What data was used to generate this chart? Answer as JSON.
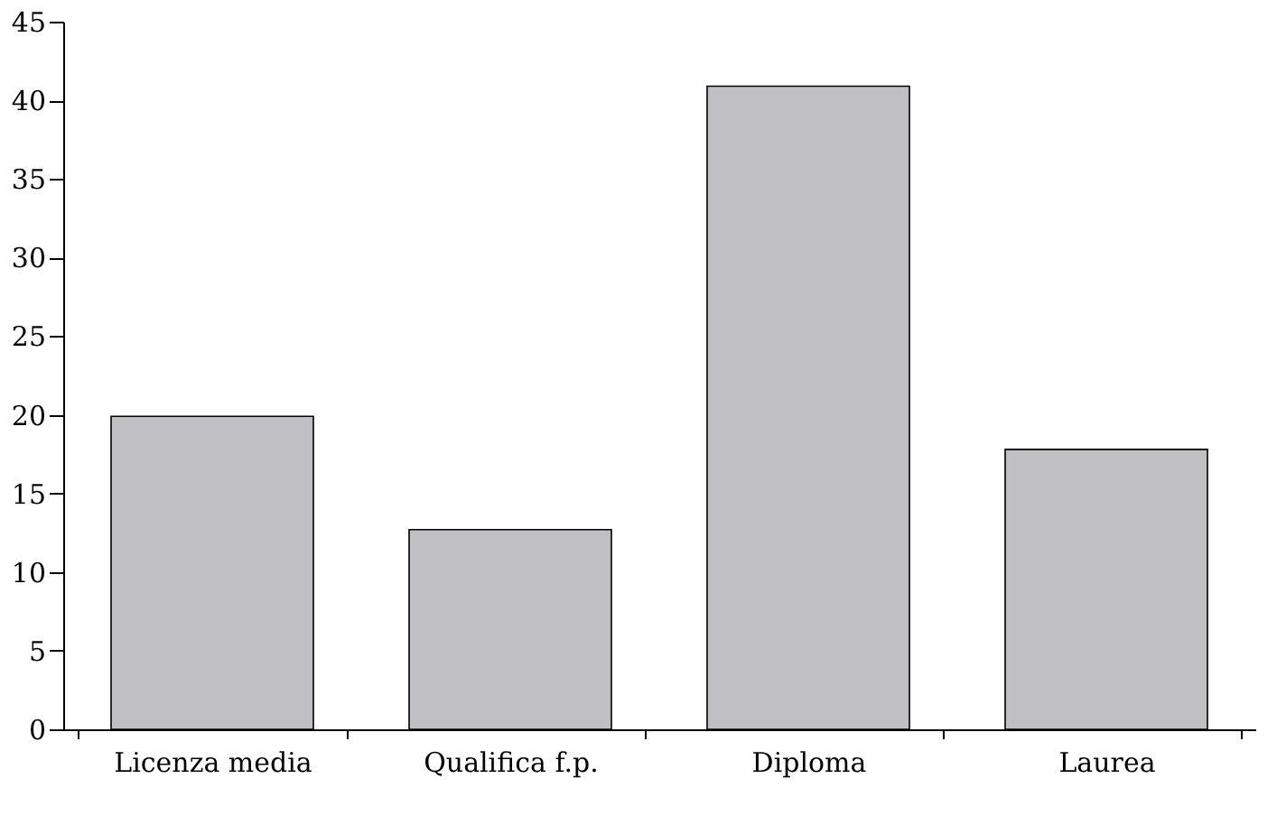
{
  "chart_data": {
    "type": "bar",
    "categories": [
      "Licenza media",
      "Qualifica f.p.",
      "Diploma",
      "Laurea"
    ],
    "values": [
      19.9,
      12.7,
      40.9,
      17.8
    ],
    "color": "#c0c0c4",
    "ylim": [
      0,
      45
    ],
    "yticks": [
      0,
      5,
      10,
      15,
      20,
      25,
      30,
      35,
      40,
      45
    ],
    "grid": false
  }
}
